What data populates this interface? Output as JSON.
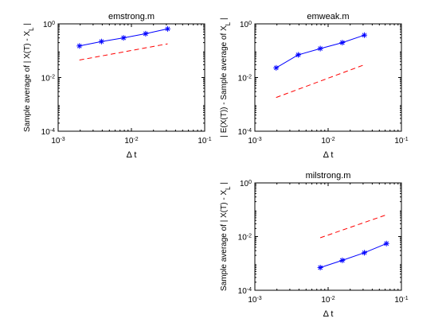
{
  "chart_data": [
    {
      "type": "line",
      "title": "emstrong.m",
      "xlabel": "Δ t",
      "ylabel": "Sample average of | X(T) - X_L |",
      "xscale": "log",
      "yscale": "log",
      "xlim": [
        0.001,
        0.1
      ],
      "ylim": [
        0.0001,
        1
      ],
      "xticks": [
        {
          "v": 0.001,
          "base": "10",
          "exp": "-3"
        },
        {
          "v": 0.01,
          "base": "10",
          "exp": "-2"
        },
        {
          "v": 0.1,
          "base": "10",
          "exp": "-1"
        }
      ],
      "yticks": [
        {
          "v": 0.0001,
          "base": "10",
          "exp": "-4"
        },
        {
          "v": 0.01,
          "base": "10",
          "exp": "-2"
        },
        {
          "v": 1,
          "base": "10",
          "exp": "0"
        }
      ],
      "series": [
        {
          "style": "solid-star",
          "color": "#0000ff",
          "x": [
            0.001953,
            0.003906,
            0.007813,
            0.015625,
            0.03125
          ],
          "y": [
            0.15,
            0.22,
            0.3,
            0.43,
            0.65
          ]
        },
        {
          "style": "dashed",
          "color": "#ff0000",
          "x": [
            0.001953,
            0.03125
          ],
          "y": [
            0.045,
            0.18
          ]
        }
      ]
    },
    {
      "type": "line",
      "title": "emweak.m",
      "xlabel": "Δ t",
      "ylabel": "| E(X(T)) - Sample average of X_L |",
      "xscale": "log",
      "yscale": "log",
      "xlim": [
        0.001,
        0.1
      ],
      "ylim": [
        0.0001,
        1
      ],
      "xticks": [
        {
          "v": 0.001,
          "base": "10",
          "exp": "-3"
        },
        {
          "v": 0.01,
          "base": "10",
          "exp": "-2"
        },
        {
          "v": 0.1,
          "base": "10",
          "exp": "-1"
        }
      ],
      "yticks": [
        {
          "v": 0.0001,
          "base": "10",
          "exp": "-4"
        },
        {
          "v": 0.01,
          "base": "10",
          "exp": "-2"
        },
        {
          "v": 1,
          "base": "10",
          "exp": "0"
        }
      ],
      "series": [
        {
          "style": "solid-star",
          "color": "#0000ff",
          "x": [
            0.001953,
            0.003906,
            0.007813,
            0.015625,
            0.03125
          ],
          "y": [
            0.023,
            0.07,
            0.12,
            0.2,
            0.38
          ]
        },
        {
          "style": "dashed",
          "color": "#ff0000",
          "x": [
            0.001953,
            0.03125
          ],
          "y": [
            0.0018,
            0.03
          ]
        }
      ]
    },
    {
      "type": "line",
      "title": "milstrong.m",
      "xlabel": "Δ t",
      "ylabel": "Sample average of | X(T) - X_L |",
      "xscale": "log",
      "yscale": "log",
      "xlim": [
        0.001,
        0.1
      ],
      "ylim": [
        0.0001,
        1
      ],
      "xticks": [
        {
          "v": 0.001,
          "base": "10",
          "exp": "-3"
        },
        {
          "v": 0.01,
          "base": "10",
          "exp": "-2"
        },
        {
          "v": 0.1,
          "base": "10",
          "exp": "-1"
        }
      ],
      "yticks": [
        {
          "v": 0.0001,
          "base": "10",
          "exp": "-4"
        },
        {
          "v": 0.01,
          "base": "10",
          "exp": "-2"
        },
        {
          "v": 1,
          "base": "10",
          "exp": "0"
        }
      ],
      "series": [
        {
          "style": "solid-star",
          "color": "#0000ff",
          "x": [
            0.007813,
            0.015625,
            0.03125,
            0.0625
          ],
          "y": [
            0.0007,
            0.0013,
            0.0025,
            0.0055
          ]
        },
        {
          "style": "dashed",
          "color": "#ff0000",
          "x": [
            0.007813,
            0.0625
          ],
          "y": [
            0.009,
            0.065
          ]
        }
      ]
    }
  ]
}
